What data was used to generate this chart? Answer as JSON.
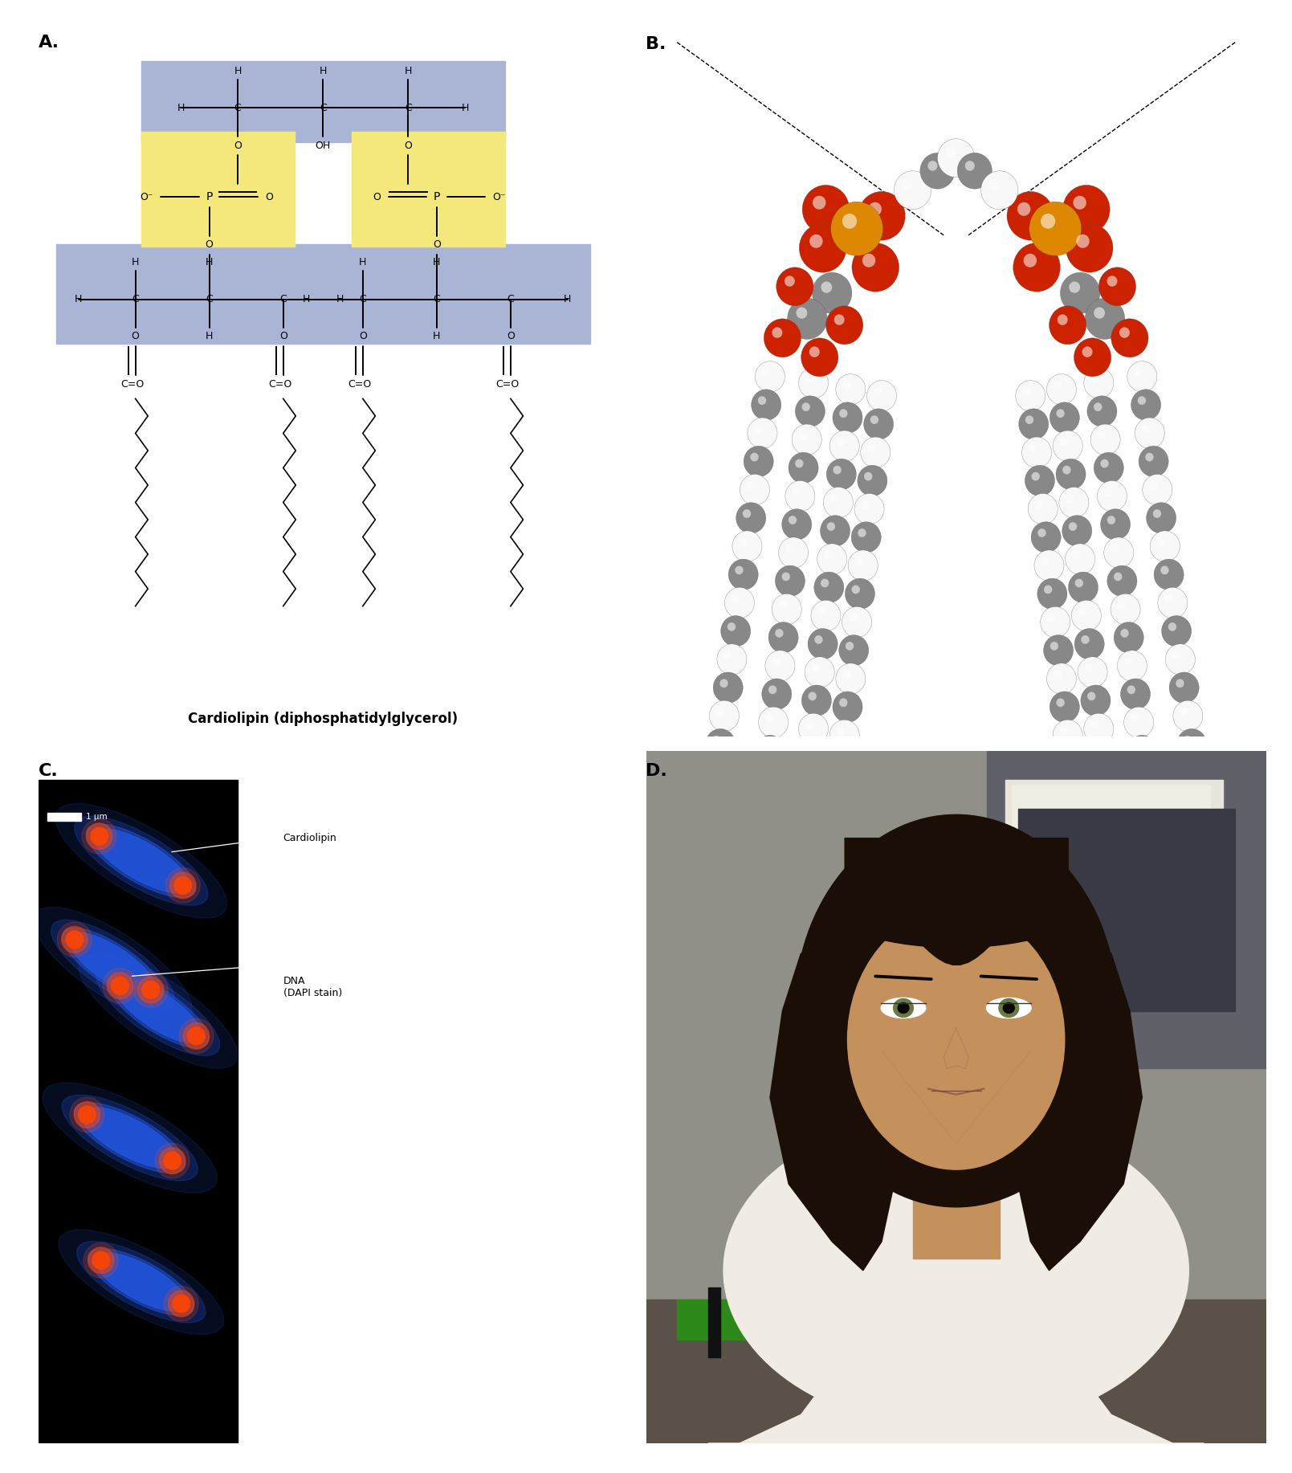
{
  "figure_width": 16.09,
  "figure_height": 18.34,
  "background_color": "#ffffff",
  "panel_labels": [
    "A.",
    "B.",
    "C.",
    "D."
  ],
  "panel_label_fontsize": 16,
  "panel_label_fontweight": "bold",
  "title_text": "Cardiolipin (diphosphatidylglycerol)",
  "title_fontsize": 12,
  "title_fontweight": "bold",
  "blue_bg": "#aab4d4",
  "yellow_bg": "#f5e87a",
  "cardiolipin_label": "Cardiolipin",
  "dna_label": "DNA\n(DAPI stain)",
  "scale_bar_text": "1 μm",
  "annotation_fontsize": 10,
  "structure_line_color": "#000000",
  "structure_text_color": "#000000"
}
